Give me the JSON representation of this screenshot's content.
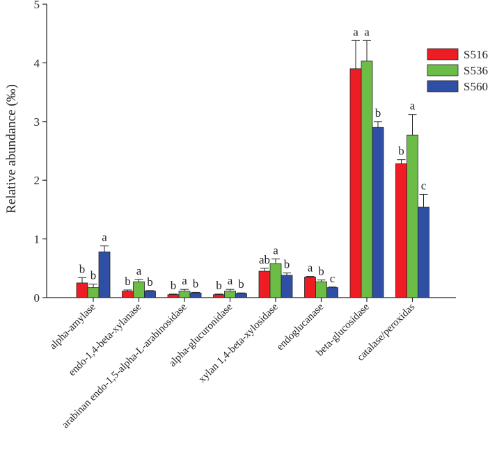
{
  "chart_data": {
    "type": "bar",
    "title": "",
    "xlabel": "",
    "ylabel": "Relative abundance   (‰)",
    "ylim": [
      0,
      5
    ],
    "yticks": [
      0,
      1,
      2,
      3,
      4,
      5
    ],
    "grid": false,
    "legend_position": "top-right",
    "categories": [
      "alpha-amylase",
      "endo-1,4-beta-xylanase",
      "arabinan endo-1,5-alpha-L-arabinosidase",
      "alpha-glucuronidase",
      "xylan 1,4-beta-xylosidase",
      "endoglucanase",
      "beta-glucosidase",
      "catalase/peroxidas"
    ],
    "series": [
      {
        "name": "S516",
        "color": "#ee1d23",
        "values": [
          0.25,
          0.11,
          0.05,
          0.05,
          0.45,
          0.35,
          3.9,
          2.28
        ],
        "errors": [
          0.09,
          0.02,
          0.01,
          0.01,
          0.05,
          0.01,
          0.48,
          0.07
        ],
        "letters": [
          "b",
          "b",
          "b",
          "b",
          "ab",
          "a",
          "a",
          "b"
        ]
      },
      {
        "name": "S536",
        "color": "#6cbd45",
        "values": [
          0.17,
          0.27,
          0.11,
          0.11,
          0.58,
          0.27,
          4.03,
          2.77
        ],
        "errors": [
          0.06,
          0.04,
          0.03,
          0.03,
          0.08,
          0.03,
          0.35,
          0.35
        ],
        "letters": [
          "b",
          "a",
          "a",
          "a",
          "a",
          "b",
          "a",
          "a"
        ]
      },
      {
        "name": "S560",
        "color": "#2e4fa3",
        "values": [
          0.78,
          0.11,
          0.08,
          0.07,
          0.38,
          0.17,
          2.9,
          1.54
        ],
        "errors": [
          0.1,
          0.01,
          0.01,
          0.01,
          0.04,
          0.01,
          0.1,
          0.22
        ],
        "letters": [
          "a",
          "b",
          "b",
          "b",
          "b",
          "c",
          "b",
          "c"
        ]
      }
    ]
  }
}
